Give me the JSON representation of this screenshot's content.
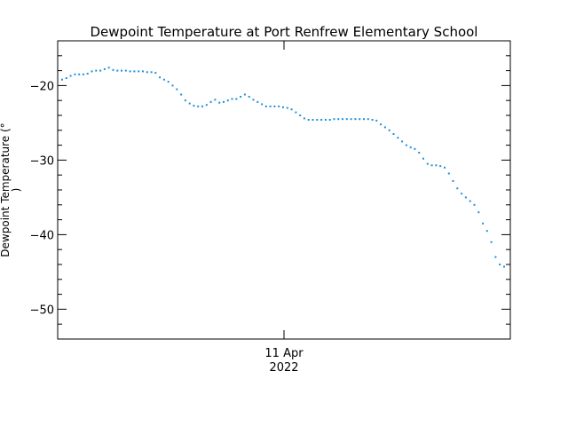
{
  "chart_data": {
    "type": "scatter",
    "title": "Dewpoint Temperature at Port Renfrew Elementary School",
    "ylabel_line1": "Dewpoint Temperature (°",
    "ylabel_line2": ")",
    "x_tick_label_line1": "11 Apr",
    "x_tick_label_line2": "2022",
    "ylim": [
      -54,
      -14
    ],
    "y_ticks": [
      -20,
      -30,
      -40,
      -50
    ],
    "y_tick_labels": [
      "−20",
      "−30",
      "−40",
      "−50"
    ],
    "marker_color": "#1f8fd8",
    "grid": false,
    "series": [
      {
        "values": [
          -19.2,
          -19.0,
          -18.7,
          -18.5,
          -18.5,
          -18.5,
          -18.4,
          -18.1,
          -18.0,
          -18.0,
          -17.8,
          -17.6,
          -17.9,
          -18.0,
          -18.0,
          -18.0,
          -18.1,
          -18.1,
          -18.1,
          -18.1,
          -18.2,
          -18.2,
          -18.3,
          -18.9,
          -19.2,
          -19.5,
          -20.0,
          -20.5,
          -21.2,
          -22.0,
          -22.4,
          -22.7,
          -22.8,
          -22.8,
          -22.6,
          -22.2,
          -21.9,
          -22.3,
          -22.2,
          -22.0,
          -21.8,
          -21.8,
          -21.5,
          -21.2,
          -21.5,
          -21.9,
          -22.2,
          -22.5,
          -22.8,
          -22.8,
          -22.8,
          -22.8,
          -22.9,
          -23.0,
          -23.2,
          -23.6,
          -24.0,
          -24.4,
          -24.6,
          -24.6,
          -24.6,
          -24.6,
          -24.6,
          -24.6,
          -24.5,
          -24.5,
          -24.5,
          -24.5,
          -24.5,
          -24.5,
          -24.5,
          -24.5,
          -24.5,
          -24.6,
          -24.7,
          -25.2,
          -25.6,
          -26.0,
          -26.5,
          -27.0,
          -27.5,
          -28.0,
          -28.3,
          -28.5,
          -29.0,
          -29.8,
          -30.5,
          -30.7,
          -30.7,
          -30.8,
          -31.0,
          -31.8,
          -32.8,
          -33.8,
          -34.5,
          -35.0,
          -35.5,
          -36.0,
          -37.0,
          -38.5,
          -39.5,
          -41.0,
          -43.0,
          -44.0,
          -44.3
        ]
      }
    ]
  }
}
